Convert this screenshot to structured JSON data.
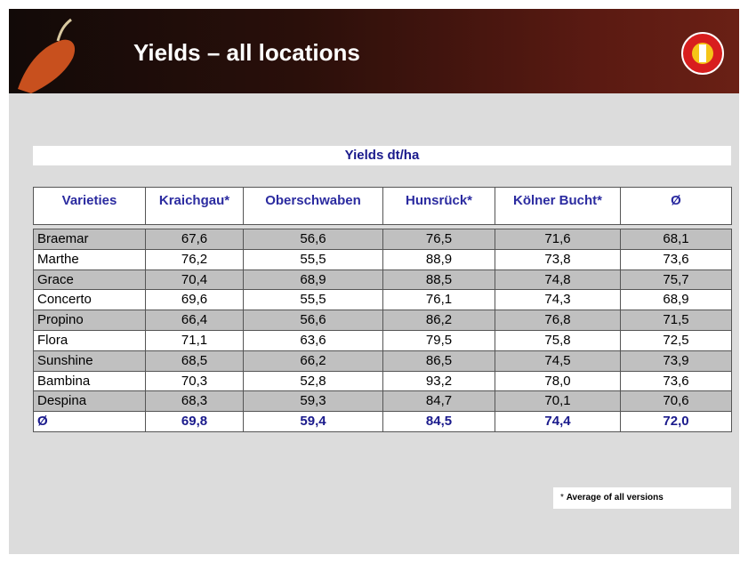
{
  "header": {
    "title": "Yields – all locations"
  },
  "table": {
    "caption": "Yields dt/ha",
    "columns": [
      "Varieties",
      "Kraichgau*",
      "Oberschwaben",
      "Hunsrück*",
      "Kölner Bucht*",
      "Ø"
    ],
    "rows": [
      [
        "Braemar",
        "67,6",
        "56,6",
        "76,5",
        "71,6",
        "68,1"
      ],
      [
        "Marthe",
        "76,2",
        "55,5",
        "88,9",
        "73,8",
        "73,6"
      ],
      [
        "Grace",
        "70,4",
        "68,9",
        "88,5",
        "74,8",
        "75,7"
      ],
      [
        "Concerto",
        "69,6",
        "55,5",
        "76,1",
        "74,3",
        "68,9"
      ],
      [
        "Propino",
        "66,4",
        "56,6",
        "86,2",
        "76,8",
        "71,5"
      ],
      [
        "Flora",
        "71,1",
        "63,6",
        "79,5",
        "75,8",
        "72,5"
      ],
      [
        "Sunshine",
        "68,5",
        "66,2",
        "86,5",
        "74,5",
        "73,9"
      ],
      [
        "Bambina",
        "70,3",
        "52,8",
        "93,2",
        "78,0",
        "73,6"
      ],
      [
        "Despina",
        "68,3",
        "59,3",
        "84,7",
        "70,1",
        "70,6"
      ]
    ],
    "footer_row": [
      "Ø",
      "69,8",
      "59,4",
      "84,5",
      "74,4",
      "72,0"
    ]
  },
  "footnote": {
    "marker": "*",
    "text": "Average of all versions"
  }
}
